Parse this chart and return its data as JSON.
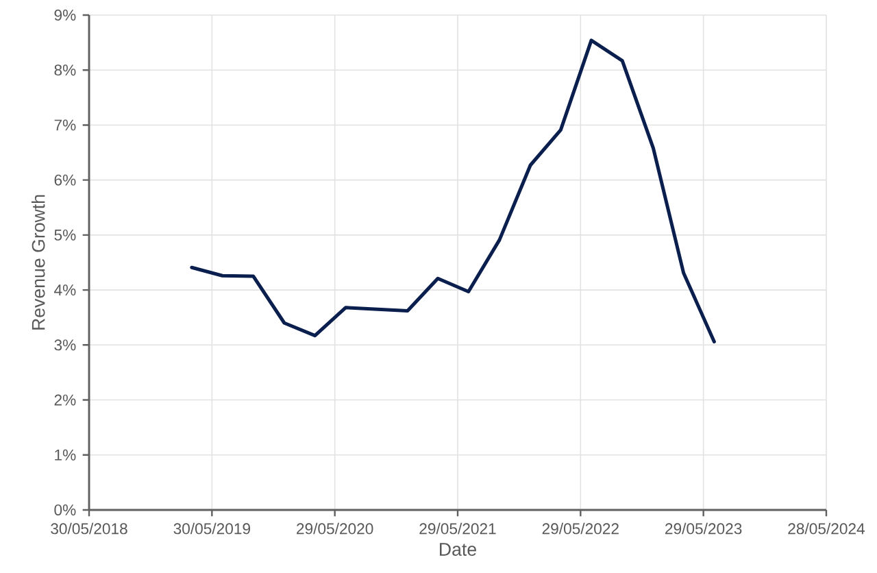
{
  "chart_data": {
    "type": "line",
    "xlabel": "Date",
    "ylabel": "Revenue Growth",
    "x": [
      "2019-03-31",
      "2019-06-30",
      "2019-09-30",
      "2019-12-31",
      "2020-03-31",
      "2020-06-30",
      "2020-12-31",
      "2021-03-31",
      "2021-06-30",
      "2021-09-30",
      "2021-12-31",
      "2022-03-31",
      "2022-06-30",
      "2022-09-30",
      "2022-12-31",
      "2023-03-31",
      "2023-06-30"
    ],
    "series": [
      {
        "color": "#0b1f4f",
        "values": [
          4.41,
          4.26,
          4.25,
          3.4,
          3.17,
          3.68,
          3.62,
          4.21,
          3.97,
          4.91,
          6.27,
          6.91,
          8.54,
          8.17,
          6.58,
          4.31,
          3.06
        ]
      }
    ],
    "xlim": [
      "2018-05-30",
      "2024-05-28"
    ],
    "xticks": [
      {
        "value": "2018-05-30",
        "label": "30/05/2018"
      },
      {
        "value": "2019-05-30",
        "label": "30/05/2019"
      },
      {
        "value": "2020-05-29",
        "label": "29/05/2020"
      },
      {
        "value": "2021-05-29",
        "label": "29/05/2021"
      },
      {
        "value": "2022-05-29",
        "label": "29/05/2022"
      },
      {
        "value": "2023-05-29",
        "label": "29/05/2023"
      },
      {
        "value": "2024-05-28",
        "label": "28/05/2024"
      }
    ],
    "ylim": [
      0,
      9
    ],
    "yticks": [
      {
        "value": 0,
        "label": "0%"
      },
      {
        "value": 1,
        "label": "1%"
      },
      {
        "value": 2,
        "label": "2%"
      },
      {
        "value": 3,
        "label": "3%"
      },
      {
        "value": 4,
        "label": "4%"
      },
      {
        "value": 5,
        "label": "5%"
      },
      {
        "value": 6,
        "label": "6%"
      },
      {
        "value": 7,
        "label": "7%"
      },
      {
        "value": 8,
        "label": "8%"
      },
      {
        "value": 9,
        "label": "9%"
      }
    ],
    "grid": true
  }
}
